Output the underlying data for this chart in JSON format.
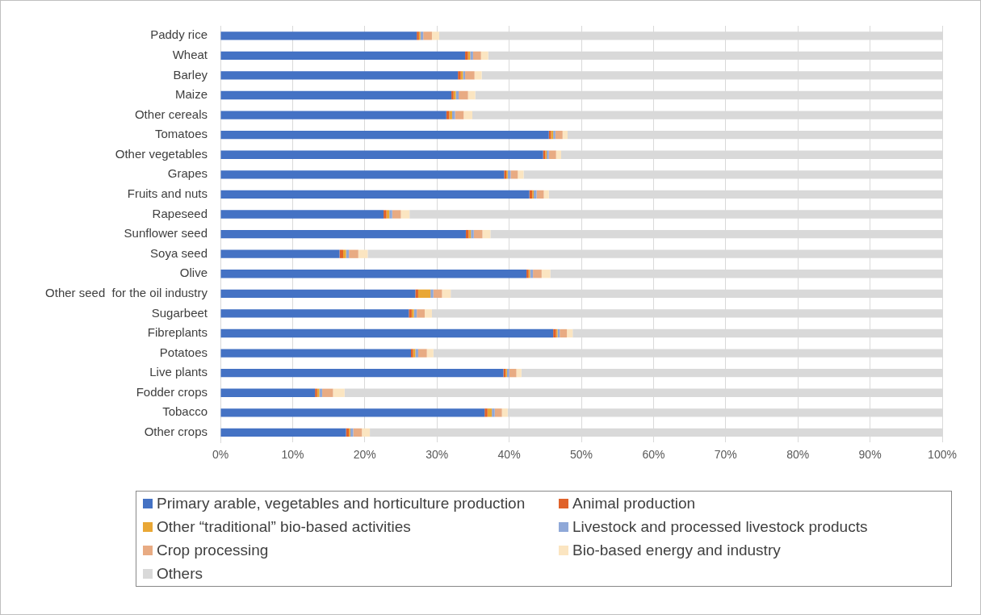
{
  "chart_data": {
    "type": "bar",
    "orientation": "horizontal",
    "stacked": true,
    "categories": [
      "Paddy rice",
      "Wheat",
      "Barley",
      "Maize",
      "Other cereals",
      "Tomatoes",
      "Other vegetables",
      "Grapes",
      "Fruits and nuts",
      "Rapeseed",
      "Sunflower seed",
      "Soya seed",
      "Olive",
      "Other seed  for the oil industry",
      "Sugarbeet",
      "Fibreplants",
      "Potatoes",
      "Live plants",
      "Fodder crops",
      "Tobacco",
      "Other crops"
    ],
    "series": [
      {
        "name": "Primary arable, vegetables and horticulture production",
        "color": "#4472c4",
        "values": [
          27.2,
          33.9,
          32.9,
          32.0,
          31.3,
          45.5,
          44.7,
          39.3,
          42.8,
          22.6,
          34.0,
          16.5,
          42.4,
          27.0,
          26.1,
          46.1,
          26.4,
          39.2,
          13.1,
          36.6,
          17.4
        ]
      },
      {
        "name": "Animal production",
        "color": "#e0622a",
        "values": [
          0.3,
          0.4,
          0.4,
          0.3,
          0.4,
          0.3,
          0.3,
          0.3,
          0.4,
          0.4,
          0.4,
          0.5,
          0.3,
          0.4,
          0.4,
          0.4,
          0.3,
          0.3,
          0.3,
          0.4,
          0.4
        ]
      },
      {
        "name": "Other “traditional” bio-based activities",
        "color": "#e9a735",
        "values": [
          0.2,
          0.3,
          0.3,
          0.3,
          0.4,
          0.3,
          0.2,
          0.2,
          0.2,
          0.4,
          0.3,
          0.4,
          0.2,
          1.7,
          0.3,
          0.2,
          0.3,
          0.2,
          0.3,
          0.6,
          0.2
        ]
      },
      {
        "name": "Livestock and processed livestock products",
        "color": "#8fa8d8",
        "values": [
          0.4,
          0.4,
          0.3,
          0.4,
          0.4,
          0.3,
          0.3,
          0.4,
          0.4,
          0.4,
          0.4,
          0.4,
          0.4,
          0.4,
          0.4,
          0.3,
          0.4,
          0.3,
          0.4,
          0.4,
          0.4
        ]
      },
      {
        "name": "Crop processing",
        "color": "#e8ab83",
        "values": [
          1.2,
          1.1,
          1.3,
          1.3,
          1.2,
          1.0,
          1.0,
          1.0,
          1.0,
          1.2,
          1.2,
          1.3,
          1.2,
          1.2,
          1.1,
          1.0,
          1.2,
          1.0,
          1.5,
          1.0,
          1.2
        ]
      },
      {
        "name": "Bio-based energy and industry",
        "color": "#fbe5c1",
        "values": [
          1.0,
          1.0,
          1.0,
          1.0,
          1.2,
          0.7,
          0.7,
          0.8,
          0.7,
          1.2,
          1.1,
          1.3,
          1.2,
          1.2,
          1.0,
          0.8,
          0.9,
          0.7,
          1.6,
          0.8,
          1.1
        ]
      },
      {
        "name": "Others",
        "color": "#d9d9d9",
        "values": [
          69.7,
          62.9,
          63.8,
          64.7,
          65.1,
          51.9,
          52.8,
          58.0,
          54.5,
          73.8,
          62.6,
          79.6,
          54.3,
          68.1,
          70.7,
          51.2,
          70.5,
          58.3,
          82.8,
          60.2,
          79.3
        ]
      }
    ],
    "xlim": [
      0,
      100
    ],
    "xticks": [
      {
        "value": 0,
        "label": "0%"
      },
      {
        "value": 10,
        "label": "10%"
      },
      {
        "value": 20,
        "label": "20%"
      },
      {
        "value": 30,
        "label": "30%"
      },
      {
        "value": 40,
        "label": "40%"
      },
      {
        "value": 50,
        "label": "50%"
      },
      {
        "value": 60,
        "label": "60%"
      },
      {
        "value": 70,
        "label": "70%"
      },
      {
        "value": 80,
        "label": "80%"
      },
      {
        "value": 90,
        "label": "90%"
      },
      {
        "value": 100,
        "label": "100%"
      }
    ],
    "grid": "x",
    "legend": "bottom"
  }
}
